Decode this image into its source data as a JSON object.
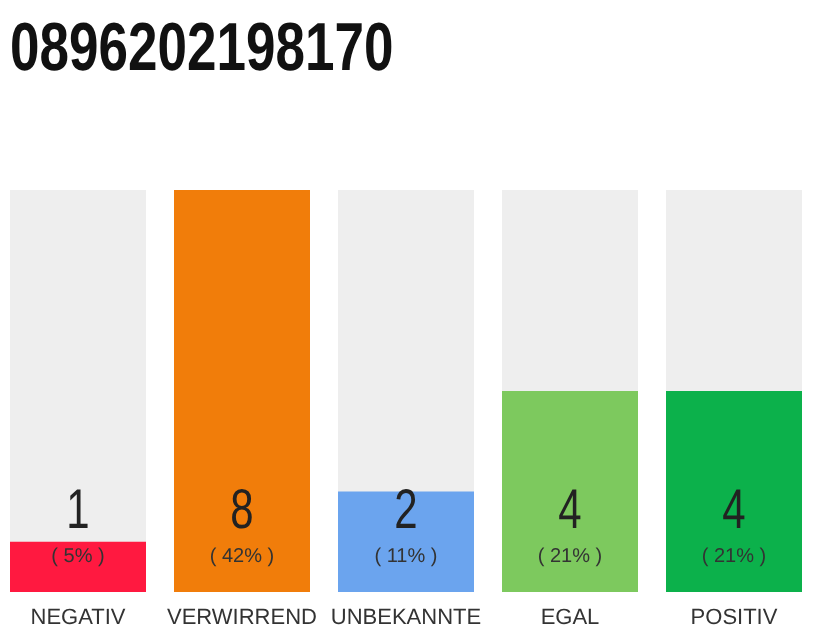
{
  "chart_data": {
    "type": "bar",
    "title": "0896202198170",
    "categories": [
      "NEGATIV",
      "VERWIRREND",
      "UNBEKANNTE",
      "EGAL",
      "POSITIV"
    ],
    "values": [
      1,
      8,
      2,
      4,
      4
    ],
    "colors": [
      "#ff1940",
      "#f17d0a",
      "#6ba4ee",
      "#7dc95e",
      "#0cb14b"
    ],
    "data_labels": true,
    "tick_labels": "x",
    "annotations": [
      "( 5% )",
      "( 42% )",
      "( 11% )",
      "( 21% )",
      "( 21% )"
    ]
  }
}
